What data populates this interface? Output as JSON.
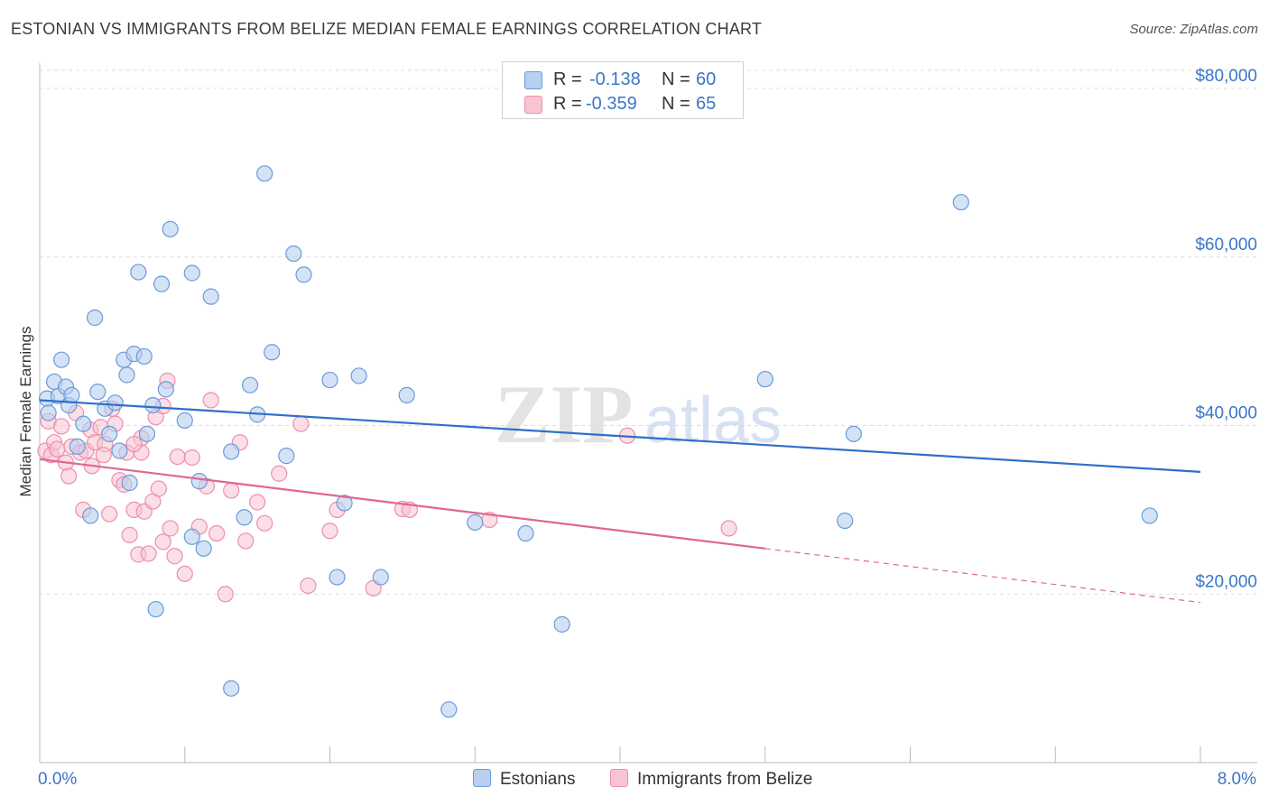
{
  "title": "ESTONIAN VS IMMIGRANTS FROM BELIZE MEDIAN FEMALE EARNINGS CORRELATION CHART",
  "source": "Source: ZipAtlas.com",
  "legend": {
    "rows": [
      {
        "r_label": "R =",
        "r_value": "-0.138",
        "n_label": "N =",
        "n_value": "60"
      },
      {
        "r_label": "R =",
        "r_value": "-0.359",
        "n_label": "N =",
        "n_value": "65"
      }
    ]
  },
  "bottom_legend": {
    "series1": "Estonians",
    "series2": "Immigrants from Belize"
  },
  "colors": {
    "blue_fill": "#b7cff0",
    "blue_stroke": "#6b9bd8",
    "blue_line": "#2e6fcb",
    "pink_fill": "#f8c3d2",
    "pink_stroke": "#ec8fab",
    "pink_line": "#e06791",
    "tick_label": "#3a76c8",
    "grid": "#dddddd"
  },
  "chart_data": {
    "type": "scatter",
    "title": "ESTONIAN VS IMMIGRANTS FROM BELIZE MEDIAN FEMALE EARNINGS CORRELATION CHART",
    "xlabel": "",
    "ylabel": "Median Female Earnings",
    "xlim": [
      0,
      8
    ],
    "ylim": [
      0,
      83000
    ],
    "x_tick_labels": [
      {
        "value": 0,
        "label": "0.0%"
      },
      {
        "value": 8,
        "label": "8.0%"
      }
    ],
    "y_ticks": [
      {
        "value": 20000,
        "label": "$20,000"
      },
      {
        "value": 40000,
        "label": "$40,000"
      },
      {
        "value": 60000,
        "label": "$60,000"
      },
      {
        "value": 80000,
        "label": "$80,000"
      }
    ],
    "watermark": {
      "part1": "ZIP",
      "part2": "atlas"
    },
    "series": [
      {
        "name": "Estonians",
        "color": "blue",
        "trend": {
          "x0": 0,
          "y0": 43000,
          "x1": 8,
          "y1": 34500
        },
        "points": [
          [
            0.05,
            43200
          ],
          [
            0.06,
            41500
          ],
          [
            0.1,
            45200
          ],
          [
            0.13,
            43500
          ],
          [
            0.15,
            47800
          ],
          [
            0.18,
            44600
          ],
          [
            0.2,
            42400
          ],
          [
            0.22,
            43600
          ],
          [
            0.26,
            37500
          ],
          [
            0.3,
            40200
          ],
          [
            0.35,
            29300
          ],
          [
            0.38,
            52800
          ],
          [
            0.4,
            44000
          ],
          [
            0.45,
            42000
          ],
          [
            0.48,
            39000
          ],
          [
            0.52,
            42700
          ],
          [
            0.55,
            37000
          ],
          [
            0.58,
            47800
          ],
          [
            0.6,
            46000
          ],
          [
            0.62,
            33200
          ],
          [
            0.65,
            48500
          ],
          [
            0.68,
            58200
          ],
          [
            0.72,
            48200
          ],
          [
            0.74,
            39000
          ],
          [
            0.78,
            42400
          ],
          [
            0.8,
            18200
          ],
          [
            0.84,
            56800
          ],
          [
            0.87,
            44300
          ],
          [
            0.9,
            63300
          ],
          [
            1.0,
            40600
          ],
          [
            1.05,
            58100
          ],
          [
            1.1,
            33400
          ],
          [
            1.13,
            25400
          ],
          [
            1.18,
            55300
          ],
          [
            1.32,
            36900
          ],
          [
            1.41,
            29100
          ],
          [
            1.45,
            44800
          ],
          [
            1.5,
            41300
          ],
          [
            1.55,
            69900
          ],
          [
            1.6,
            48700
          ],
          [
            1.7,
            36400
          ],
          [
            1.75,
            60400
          ],
          [
            1.82,
            57900
          ],
          [
            2.0,
            45400
          ],
          [
            2.05,
            22000
          ],
          [
            2.1,
            30800
          ],
          [
            2.2,
            45900
          ],
          [
            2.35,
            22000
          ],
          [
            2.53,
            43600
          ],
          [
            2.82,
            6300
          ],
          [
            3.0,
            28500
          ],
          [
            3.35,
            27200
          ],
          [
            3.6,
            16400
          ],
          [
            5.0,
            45500
          ],
          [
            5.55,
            28700
          ],
          [
            5.61,
            39000
          ],
          [
            6.35,
            66500
          ],
          [
            7.65,
            29300
          ],
          [
            1.32,
            8800
          ],
          [
            1.05,
            26800
          ]
        ]
      },
      {
        "name": "Immigrants from Belize",
        "color": "pink",
        "trend": {
          "x0": 0,
          "y0": 36000,
          "x1": 5.0,
          "y1": 25400,
          "dash_x1": 8,
          "dash_y1": 19000
        },
        "points": [
          [
            0.04,
            37000
          ],
          [
            0.06,
            40500
          ],
          [
            0.08,
            36500
          ],
          [
            0.1,
            38000
          ],
          [
            0.12,
            37200
          ],
          [
            0.15,
            39900
          ],
          [
            0.18,
            35600
          ],
          [
            0.2,
            34000
          ],
          [
            0.22,
            37500
          ],
          [
            0.25,
            41500
          ],
          [
            0.28,
            36800
          ],
          [
            0.3,
            30000
          ],
          [
            0.32,
            37000
          ],
          [
            0.35,
            39500
          ],
          [
            0.38,
            38000
          ],
          [
            0.42,
            39800
          ],
          [
            0.45,
            37800
          ],
          [
            0.48,
            29500
          ],
          [
            0.5,
            42000
          ],
          [
            0.52,
            40200
          ],
          [
            0.55,
            33500
          ],
          [
            0.58,
            33000
          ],
          [
            0.6,
            36800
          ],
          [
            0.62,
            27000
          ],
          [
            0.65,
            30000
          ],
          [
            0.68,
            24700
          ],
          [
            0.7,
            36800
          ],
          [
            0.72,
            29800
          ],
          [
            0.75,
            24800
          ],
          [
            0.78,
            31000
          ],
          [
            0.8,
            41000
          ],
          [
            0.82,
            32500
          ],
          [
            0.85,
            42300
          ],
          [
            0.88,
            45300
          ],
          [
            0.9,
            27800
          ],
          [
            0.93,
            24500
          ],
          [
            0.95,
            36300
          ],
          [
            1.0,
            22400
          ],
          [
            1.05,
            36200
          ],
          [
            1.1,
            28000
          ],
          [
            1.15,
            32800
          ],
          [
            1.18,
            43000
          ],
          [
            1.22,
            27200
          ],
          [
            1.28,
            20000
          ],
          [
            1.32,
            32300
          ],
          [
            1.38,
            38000
          ],
          [
            1.42,
            26300
          ],
          [
            1.5,
            30900
          ],
          [
            1.55,
            28400
          ],
          [
            1.65,
            34300
          ],
          [
            1.8,
            40200
          ],
          [
            1.85,
            21000
          ],
          [
            2.0,
            27500
          ],
          [
            2.05,
            30000
          ],
          [
            2.3,
            20700
          ],
          [
            2.5,
            30100
          ],
          [
            2.55,
            30000
          ],
          [
            3.1,
            28800
          ],
          [
            4.05,
            38800
          ],
          [
            4.75,
            27800
          ],
          [
            0.7,
            38500
          ],
          [
            0.65,
            37800
          ],
          [
            0.44,
            36500
          ],
          [
            0.36,
            35200
          ],
          [
            0.85,
            26200
          ]
        ]
      }
    ]
  }
}
